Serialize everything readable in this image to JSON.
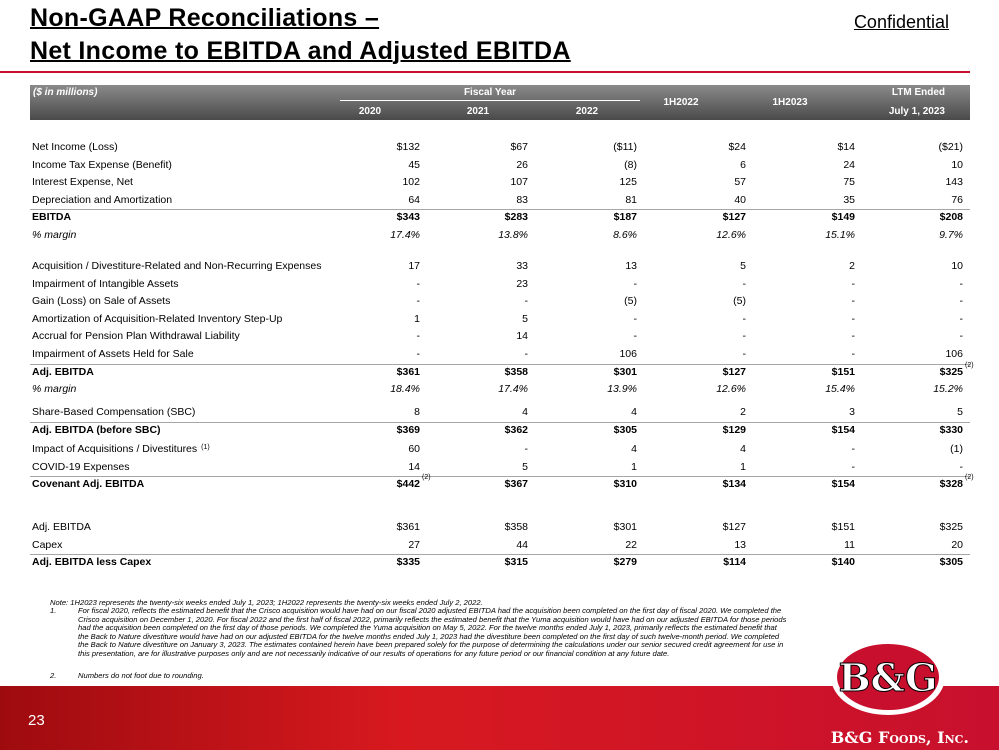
{
  "header": {
    "title_line1": "Non-GAAP Reconciliations –",
    "title_line2": "Net Income to EBITDA and Adjusted EBITDA",
    "confidential": "Confidential"
  },
  "table": {
    "unit_note": "($ in millions)",
    "group_headers": [
      "Fiscal Year",
      "LTM Ended"
    ],
    "columns": [
      "2020",
      "2021",
      "2022",
      "1H2022",
      "1H2023",
      "July 1, 2023"
    ],
    "sections": [
      {
        "rows": [
          {
            "label": "Net Income (Loss)",
            "values": [
              "$132",
              "$67",
              "($11)",
              "$24",
              "$14",
              "($21)"
            ]
          },
          {
            "label": "Income Tax Expense (Benefit)",
            "values": [
              "45",
              "26",
              "(8)",
              "6",
              "24",
              "10"
            ]
          },
          {
            "label": "Interest Expense, Net",
            "values": [
              "102",
              "107",
              "125",
              "57",
              "75",
              "143"
            ]
          },
          {
            "label": "Depreciation and Amortization",
            "values": [
              "64",
              "83",
              "81",
              "40",
              "35",
              "76"
            ]
          },
          {
            "label": "EBITDA",
            "style": "bold",
            "values": [
              "$343",
              "$283",
              "$187",
              "$127",
              "$149",
              "$208"
            ]
          },
          {
            "label": "% margin",
            "style": "italic",
            "values": [
              "17.4%",
              "13.8%",
              "8.6%",
              "12.6%",
              "15.1%",
              "9.7%"
            ]
          }
        ]
      },
      {
        "rows": [
          {
            "label": "Acquisition / Divestiture-Related and Non-Recurring Expenses",
            "values": [
              "17",
              "33",
              "13",
              "5",
              "2",
              "10"
            ]
          },
          {
            "label": "Impairment of Intangible Assets",
            "values": [
              "-",
              "23",
              "-",
              "-",
              "-",
              "-"
            ]
          },
          {
            "label": "Gain (Loss) on Sale of Assets",
            "values": [
              "-",
              "-",
              "(5)",
              "(5)",
              "-",
              "-"
            ]
          },
          {
            "label": "Amortization of Acquisition-Related Inventory Step-Up",
            "values": [
              "1",
              "5",
              "-",
              "-",
              "-",
              "-"
            ]
          },
          {
            "label": "Accrual for Pension Plan Withdrawal Liability",
            "values": [
              "-",
              "14",
              "-",
              "-",
              "-",
              "-"
            ]
          },
          {
            "label": "Impairment of Assets Held for Sale",
            "values": [
              "-",
              "-",
              "106",
              "-",
              "-",
              "106"
            ]
          },
          {
            "label": "Adj. EBITDA",
            "style": "bold",
            "values": [
              "$361",
              "$358",
              "$301",
              "$127",
              "$151",
              {
                "text": "$325",
                "sup": "(2)"
              }
            ]
          },
          {
            "label": "% margin",
            "style": "italic",
            "values": [
              "18.4%",
              "17.4%",
              "13.9%",
              "12.6%",
              "15.4%",
              "15.2%"
            ]
          }
        ]
      },
      {
        "rows": [
          {
            "label": "Share-Based Compensation (SBC)",
            "values": [
              "8",
              "4",
              "4",
              "2",
              "3",
              "5"
            ]
          },
          {
            "label": "Adj. EBITDA (before SBC)",
            "style": "bold",
            "values": [
              "$369",
              "$362",
              "$305",
              "$129",
              "$154",
              "$330"
            ]
          }
        ]
      },
      {
        "rows": [
          {
            "label": "Impact of Acquisitions / Divestitures",
            "label_sup": "(1)",
            "values": [
              "60",
              "-",
              "4",
              "4",
              "-",
              "(1)"
            ]
          },
          {
            "label": "COVID-19 Expenses",
            "values": [
              "14",
              "5",
              "1",
              "1",
              "-",
              "-"
            ]
          },
          {
            "label": "Covenant Adj. EBITDA",
            "style": "bold",
            "values": [
              {
                "text": "$442",
                "sup": "(2)"
              },
              "$367",
              "$310",
              "$134",
              "$154",
              {
                "text": "$328",
                "sup": "(2)"
              }
            ]
          }
        ]
      },
      {
        "rows": [
          {
            "label": "Adj. EBITDA",
            "values": [
              "$361",
              "$358",
              "$301",
              "$127",
              "$151",
              "$325"
            ]
          },
          {
            "label": "Capex",
            "values": [
              "27",
              "44",
              "22",
              "13",
              "11",
              "20"
            ]
          },
          {
            "label": "Adj. EBITDA less Capex",
            "style": "bold",
            "values": [
              "$335",
              "$315",
              "$279",
              "$114",
              "$140",
              "$305"
            ]
          }
        ]
      }
    ]
  },
  "footnotes": {
    "note": "Note: 1H2023 represents the twenty-six weeks ended July 1, 2023; 1H2022 represents the twenty-six weeks ended July 2, 2022.",
    "items": [
      {
        "number": "1.",
        "text": "For fiscal 2020, reflects the estimated benefit that the Crisco acquisition would have had on our fiscal 2020 adjusted EBITDA had the acquisition been completed on the first day of fiscal 2020. We completed the Crisco acquisition on December 1, 2020.  For fiscal 2022 and the first half of fiscal 2022, primarily reflects the estimated benefit that the Yuma acquisition would have had on our adjusted EBITDA for those periods had the acquisition been completed on the first day of those periods.  We completed the Yuma acquisition on May 5, 2022.  For the twelve months ended July 1, 2023, primarily reflects the estimated benefit that the Back to Nature divestiture would have had on our adjusted EBITDA for the twelve months ended July 1, 2023 had the divestiture been completed on the first day of such twelve-month period.  We completed the Back to Nature divestiture on January 3, 2023.  The estimates contained herein have been prepared solely for the purpose of determining the calculations under our senior secured credit agreement for use in this presentation, are for illustrative purposes only and are not necessarily indicative of our results of operations for any future period or our financial condition at any future date."
      },
      {
        "number": "2.",
        "text": "Numbers do not foot due to rounding."
      }
    ]
  },
  "footer": {
    "page_number": "23",
    "company": "B&G Foods, Inc.",
    "logo_text": "B&G"
  }
}
